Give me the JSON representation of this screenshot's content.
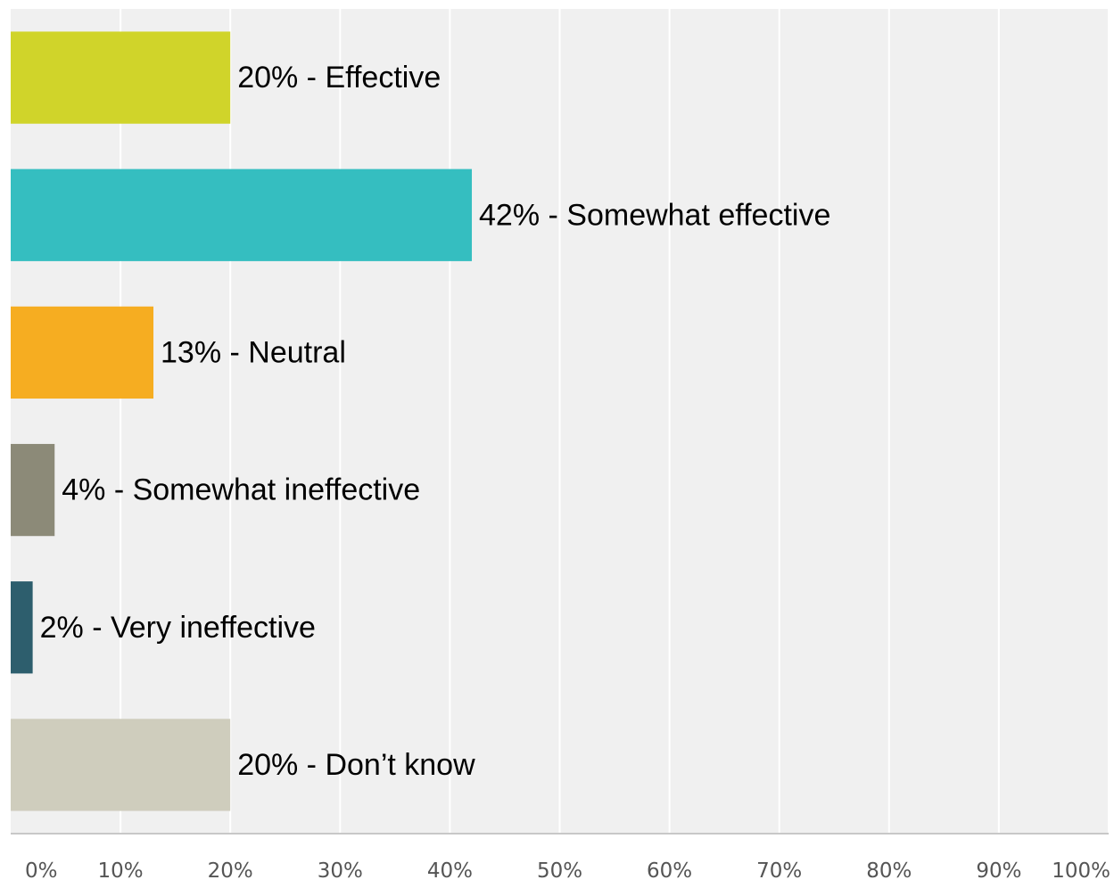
{
  "chart_data": {
    "type": "bar",
    "orientation": "horizontal",
    "title": "",
    "xlabel": "",
    "ylabel": "",
    "xlim": [
      0,
      100
    ],
    "grid": true,
    "legend": "none",
    "categories": [
      "Effective",
      "Somewhat effective",
      "Neutral",
      "Somewhat ineffective",
      "Very ineffective",
      "Don’t know"
    ],
    "values": [
      20,
      42,
      13,
      4,
      2,
      20
    ],
    "data_labels": [
      "20% - Effective",
      "42% - Somewhat effective",
      "13% - Neutral",
      "4% - Somewhat ineffective",
      "2% - Very ineffective",
      "20% - Don’t know"
    ],
    "colors": [
      "#d0d42a",
      "#35bec0",
      "#f6ad21",
      "#8c8a78",
      "#2d5e6d",
      "#cfcdbd"
    ],
    "x_ticks": [
      "0%",
      "10%",
      "20%",
      "30%",
      "40%",
      "50%",
      "60%",
      "70%",
      "80%",
      "90%",
      "100%"
    ],
    "x_tick_values": [
      0,
      10,
      20,
      30,
      40,
      50,
      60,
      70,
      80,
      90,
      100
    ]
  }
}
